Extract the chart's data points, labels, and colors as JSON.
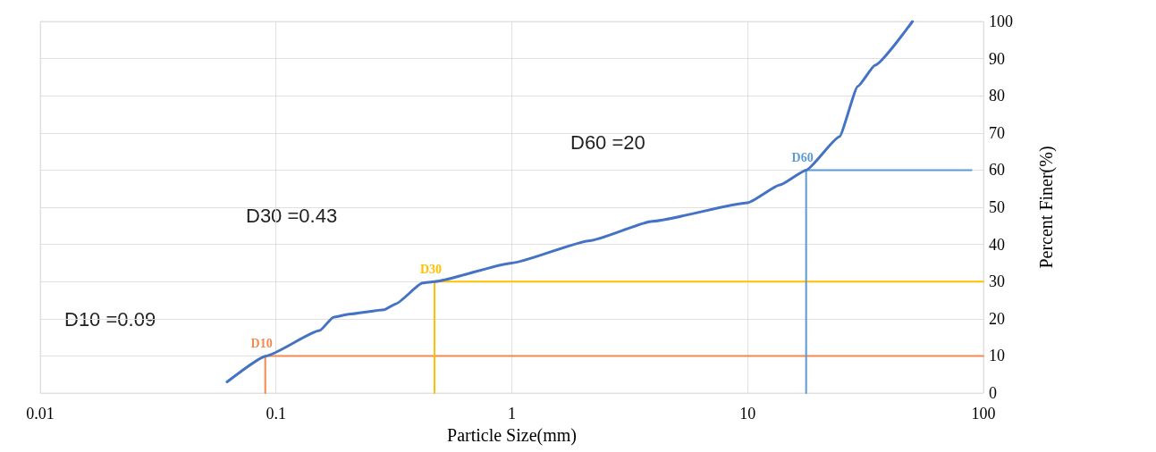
{
  "chart_data": {
    "type": "line",
    "xlabel": "Particle Size(mm)",
    "ylabel": "Percent Finer(%)",
    "log": "x",
    "xlim": [
      0.01,
      100
    ],
    "xticks": [
      0.01,
      0.1,
      1,
      10,
      100
    ],
    "ylim": [
      0,
      100
    ],
    "yticks": [
      0,
      10,
      20,
      30,
      40,
      50,
      60,
      70,
      80,
      90,
      100
    ],
    "grid": true,
    "marker": "none",
    "line_style": "solid",
    "series": [
      {
        "color": "#4472c4",
        "x": [
          0.062,
          0.091,
          0.153,
          0.175,
          0.203,
          0.287,
          0.322,
          0.418,
          0.47,
          1,
          2.14,
          3.94,
          10,
          13.7,
          17.7,
          24.5,
          29.3,
          34.7,
          50
        ],
        "values": [
          3,
          10,
          16.8,
          20.4,
          21.2,
          22.4,
          24,
          29.6,
          30,
          35,
          41,
          46.2,
          51.2,
          56,
          60,
          69,
          82.5,
          88.2,
          100
        ]
      },
      {
        "name": "D10",
        "color": "#f4894f",
        "x": [
          0.09,
          0.09,
          100
        ],
        "values": [
          0,
          10,
          10
        ]
      },
      {
        "name": "D30",
        "color": "#ffc000",
        "x": [
          0.47,
          0.47,
          100
        ],
        "values": [
          0,
          30,
          30
        ]
      },
      {
        "name": "D60",
        "color": "#5b9bd5",
        "x": [
          17.7,
          17.7,
          89
        ],
        "values": [
          0,
          60,
          60
        ]
      }
    ],
    "annotations": [
      "D10 =0.09",
      "D30 =0.43",
      "D60 =20"
    ]
  }
}
